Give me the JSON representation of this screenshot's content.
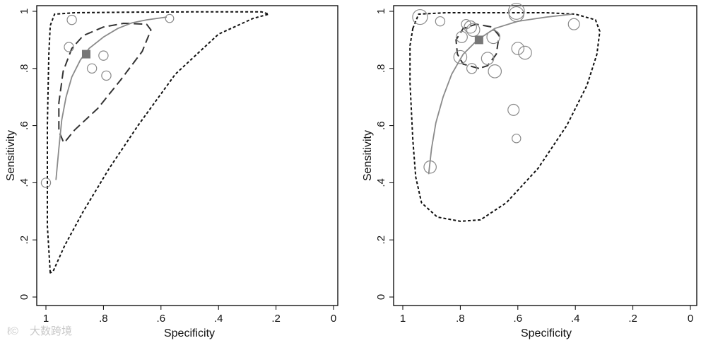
{
  "watermark": "大数跨境",
  "colors": {
    "curve": "#8a8a8a",
    "point": "#8a8a8a",
    "summary": "#777777",
    "region": "#111111"
  },
  "chart_data": [
    {
      "type": "scatter",
      "xlabel": "Specificity",
      "ylabel": "Sensitivity",
      "xlim": [
        1,
        0
      ],
      "ylim": [
        0,
        1
      ],
      "x_ticks": [
        "1",
        ".8",
        ".6",
        ".4",
        ".2",
        "0"
      ],
      "y_ticks": [
        "0",
        ".2",
        ".4",
        ".6",
        ".8",
        "1"
      ],
      "studies": [
        {
          "spec": 0.91,
          "sens": 0.97,
          "w": 1
        },
        {
          "spec": 0.92,
          "sens": 0.875,
          "w": 1
        },
        {
          "spec": 0.8,
          "sens": 0.845,
          "w": 1
        },
        {
          "spec": 0.84,
          "sens": 0.8,
          "w": 1
        },
        {
          "spec": 0.79,
          "sens": 0.775,
          "w": 1
        },
        {
          "spec": 0.57,
          "sens": 0.975,
          "w": 0.7
        },
        {
          "spec": 1.0,
          "sens": 0.4,
          "w": 1
        }
      ],
      "summary": {
        "spec": 0.86,
        "sens": 0.85
      },
      "sroc_curve": [
        [
          0.965,
          0.41
        ],
        [
          0.955,
          0.52
        ],
        [
          0.945,
          0.62
        ],
        [
          0.93,
          0.7
        ],
        [
          0.91,
          0.77
        ],
        [
          0.88,
          0.83
        ],
        [
          0.85,
          0.87
        ],
        [
          0.8,
          0.91
        ],
        [
          0.75,
          0.94
        ],
        [
          0.7,
          0.96
        ],
        [
          0.65,
          0.97
        ],
        [
          0.58,
          0.98
        ]
      ],
      "confidence_region": [
        [
          0.94,
          0.545
        ],
        [
          0.955,
          0.58
        ],
        [
          0.955,
          0.68
        ],
        [
          0.94,
          0.79
        ],
        [
          0.91,
          0.87
        ],
        [
          0.87,
          0.915
        ],
        [
          0.8,
          0.945
        ],
        [
          0.73,
          0.958
        ],
        [
          0.65,
          0.955
        ],
        [
          0.635,
          0.935
        ],
        [
          0.665,
          0.86
        ],
        [
          0.74,
          0.76
        ],
        [
          0.82,
          0.66
        ],
        [
          0.9,
          0.585
        ],
        [
          0.93,
          0.548
        ]
      ],
      "prediction_region": [
        [
          0.985,
          0.085
        ],
        [
          0.995,
          0.25
        ],
        [
          0.995,
          0.6
        ],
        [
          0.99,
          0.85
        ],
        [
          0.985,
          0.95
        ],
        [
          0.97,
          0.99
        ],
        [
          0.9,
          0.995
        ],
        [
          0.7,
          0.997
        ],
        [
          0.5,
          0.998
        ],
        [
          0.25,
          0.998
        ],
        [
          0.225,
          0.99
        ],
        [
          0.28,
          0.975
        ],
        [
          0.4,
          0.92
        ],
        [
          0.55,
          0.78
        ],
        [
          0.68,
          0.6
        ],
        [
          0.78,
          0.45
        ],
        [
          0.87,
          0.3
        ],
        [
          0.935,
          0.18
        ],
        [
          0.975,
          0.09
        ],
        [
          0.985,
          0.085
        ]
      ]
    },
    {
      "type": "scatter",
      "xlabel": "Specificity",
      "ylabel": "Sensitivity",
      "xlim": [
        1,
        0
      ],
      "ylim": [
        0,
        1
      ],
      "x_ticks": [
        "1",
        ".8",
        ".6",
        ".4",
        ".2",
        "0"
      ],
      "y_ticks": [
        "0",
        ".2",
        ".4",
        ".6",
        ".8",
        "1"
      ],
      "studies": [
        {
          "spec": 0.94,
          "sens": 0.98,
          "w": 2.5
        },
        {
          "spec": 0.87,
          "sens": 0.965,
          "w": 1
        },
        {
          "spec": 0.78,
          "sens": 0.955,
          "w": 1
        },
        {
          "spec": 0.765,
          "sens": 0.945,
          "w": 1.8
        },
        {
          "spec": 0.755,
          "sens": 0.935,
          "w": 2
        },
        {
          "spec": 0.795,
          "sens": 0.91,
          "w": 1.5
        },
        {
          "spec": 0.685,
          "sens": 0.91,
          "w": 2
        },
        {
          "spec": 0.605,
          "sens": 1.0,
          "w": 2.8
        },
        {
          "spec": 0.605,
          "sens": 0.99,
          "w": 2.5
        },
        {
          "spec": 0.405,
          "sens": 0.955,
          "w": 1.5
        },
        {
          "spec": 0.6,
          "sens": 0.87,
          "w": 1.8
        },
        {
          "spec": 0.575,
          "sens": 0.855,
          "w": 2
        },
        {
          "spec": 0.8,
          "sens": 0.84,
          "w": 2
        },
        {
          "spec": 0.705,
          "sens": 0.835,
          "w": 1.8
        },
        {
          "spec": 0.76,
          "sens": 0.8,
          "w": 1.2
        },
        {
          "spec": 0.68,
          "sens": 0.79,
          "w": 2
        },
        {
          "spec": 0.615,
          "sens": 0.655,
          "w": 1.5
        },
        {
          "spec": 0.605,
          "sens": 0.555,
          "w": 0.8
        },
        {
          "spec": 0.905,
          "sens": 0.455,
          "w": 1.8
        }
      ],
      "summary": {
        "spec": 0.735,
        "sens": 0.9
      },
      "sroc_curve": [
        [
          0.91,
          0.43
        ],
        [
          0.9,
          0.52
        ],
        [
          0.885,
          0.61
        ],
        [
          0.86,
          0.7
        ],
        [
          0.83,
          0.78
        ],
        [
          0.79,
          0.85
        ],
        [
          0.74,
          0.9
        ],
        [
          0.68,
          0.94
        ],
        [
          0.6,
          0.965
        ],
        [
          0.5,
          0.98
        ],
        [
          0.41,
          0.99
        ]
      ],
      "confidence_region": [
        [
          0.735,
          0.8
        ],
        [
          0.79,
          0.815
        ],
        [
          0.81,
          0.85
        ],
        [
          0.815,
          0.9
        ],
        [
          0.79,
          0.94
        ],
        [
          0.745,
          0.955
        ],
        [
          0.69,
          0.945
        ],
        [
          0.665,
          0.915
        ],
        [
          0.675,
          0.85
        ],
        [
          0.705,
          0.81
        ],
        [
          0.735,
          0.8
        ]
      ],
      "prediction_region": [
        [
          0.965,
          0.94
        ],
        [
          0.945,
          0.99
        ],
        [
          0.85,
          0.995
        ],
        [
          0.65,
          0.995
        ],
        [
          0.5,
          0.995
        ],
        [
          0.4,
          0.99
        ],
        [
          0.33,
          0.97
        ],
        [
          0.315,
          0.93
        ],
        [
          0.325,
          0.85
        ],
        [
          0.36,
          0.74
        ],
        [
          0.43,
          0.6
        ],
        [
          0.53,
          0.45
        ],
        [
          0.64,
          0.33
        ],
        [
          0.73,
          0.27
        ],
        [
          0.8,
          0.265
        ],
        [
          0.88,
          0.28
        ],
        [
          0.935,
          0.33
        ],
        [
          0.955,
          0.42
        ],
        [
          0.965,
          0.55
        ],
        [
          0.975,
          0.75
        ],
        [
          0.975,
          0.88
        ],
        [
          0.965,
          0.94
        ]
      ]
    }
  ]
}
